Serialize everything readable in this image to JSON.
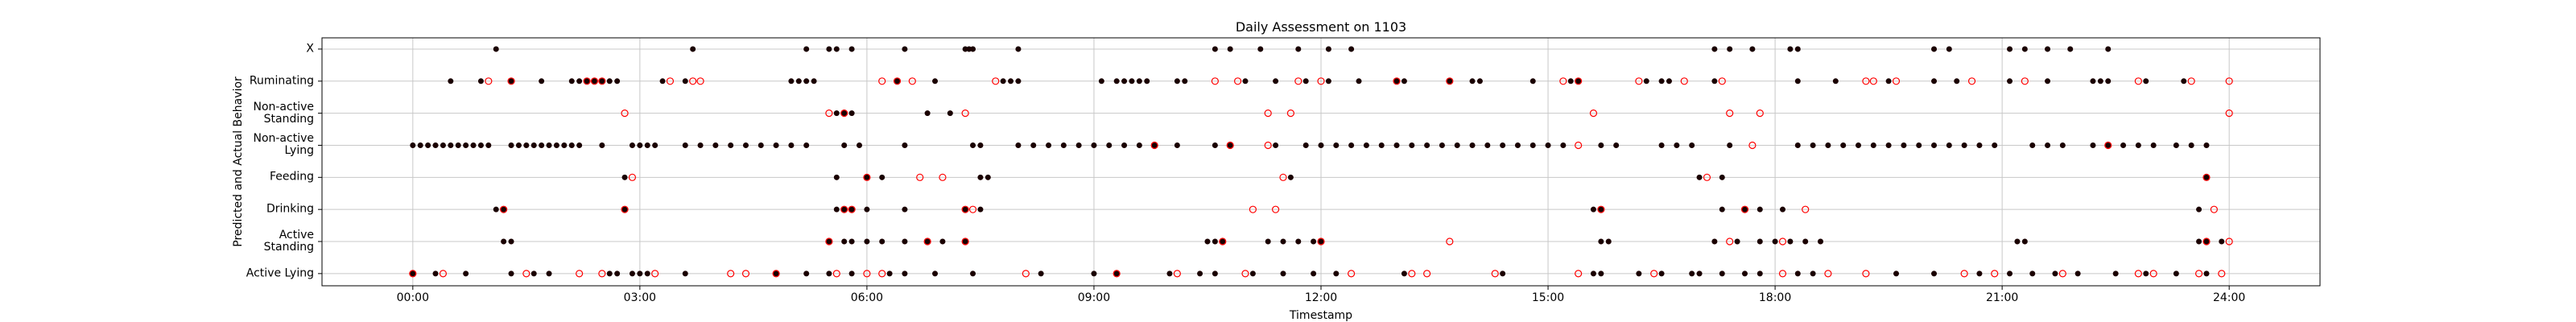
{
  "chart_data": {
    "type": "scatter",
    "title": "Daily Assessment on 1103",
    "xlabel": "Timestamp",
    "ylabel": "Predicted and Actual Behavior",
    "xlim": [
      -1.2,
      25.2
    ],
    "ylim": [
      -0.38,
      7.35
    ],
    "grid": true,
    "xticks": [
      {
        "value": 0,
        "label": "00:00"
      },
      {
        "value": 3,
        "label": "03:00"
      },
      {
        "value": 6,
        "label": "06:00"
      },
      {
        "value": 9,
        "label": "09:00"
      },
      {
        "value": 12,
        "label": "12:00"
      },
      {
        "value": 15,
        "label": "15:00"
      },
      {
        "value": 18,
        "label": "18:00"
      },
      {
        "value": 21,
        "label": "21:00"
      },
      {
        "value": 24,
        "label": "24:00"
      }
    ],
    "yticks": [
      {
        "value": 0,
        "label": "Active Lying"
      },
      {
        "value": 1,
        "label": "Active Standing"
      },
      {
        "value": 2,
        "label": "Drinking"
      },
      {
        "value": 3,
        "label": "Feeding"
      },
      {
        "value": 4,
        "label": "Non-active Lying"
      },
      {
        "value": 5,
        "label": "Non-active Standing"
      },
      {
        "value": 6,
        "label": "Ruminating"
      },
      {
        "value": 7,
        "label": "X"
      }
    ],
    "series": [
      {
        "color": "#1a0000",
        "marker": "filled",
        "x": [
          0.0,
          0.1,
          0.2,
          0.3,
          0.4,
          0.5,
          0.6,
          0.7,
          0.8,
          0.9,
          1.0,
          1.3,
          1.4,
          1.5,
          1.6,
          1.7,
          1.8,
          1.9,
          2.0,
          2.1,
          2.2,
          2.5,
          2.9,
          3.0,
          3.1,
          3.2,
          3.6,
          3.8,
          4.0,
          4.2,
          4.4,
          4.6,
          4.8,
          5.0,
          5.2,
          5.7,
          5.9,
          6.5,
          7.4,
          7.5,
          8.0,
          8.2,
          8.4,
          8.6,
          8.8,
          9.0,
          9.2,
          9.4,
          9.6,
          9.8,
          10.1,
          10.6,
          10.8,
          11.4,
          11.8,
          12.0,
          12.2,
          12.4,
          12.6,
          12.8,
          13.0,
          13.2,
          13.4,
          13.6,
          13.8,
          14.0,
          14.2,
          14.4,
          14.6,
          14.8,
          15.0,
          15.2,
          15.7,
          15.9,
          16.5,
          16.7,
          16.9,
          17.4,
          18.3,
          18.5,
          18.7,
          18.9,
          19.1,
          19.3,
          19.5,
          19.7,
          19.9,
          20.1,
          20.3,
          20.5,
          20.7,
          20.9,
          21.4,
          21.6,
          21.8,
          22.2,
          22.4,
          22.6,
          22.8,
          23.0,
          23.3,
          23.5,
          23.7
        ],
        "values": [
          4,
          4,
          4,
          4,
          4,
          4,
          4,
          4,
          4,
          4,
          4,
          4,
          4,
          4,
          4,
          4,
          4,
          4,
          4,
          4,
          4,
          4,
          4,
          4,
          4,
          4,
          4,
          4,
          4,
          4,
          4,
          4,
          4,
          4,
          4,
          4,
          4,
          4,
          4,
          4,
          4,
          4,
          4,
          4,
          4,
          4,
          4,
          4,
          4,
          4,
          4,
          4,
          4,
          4,
          4,
          4,
          4,
          4,
          4,
          4,
          4,
          4,
          4,
          4,
          4,
          4,
          4,
          4,
          4,
          4,
          4,
          4,
          4,
          4,
          4,
          4,
          4,
          4,
          4,
          4,
          4,
          4,
          4,
          4,
          4,
          4,
          4,
          4,
          4,
          4,
          4,
          4,
          4,
          4,
          4,
          4,
          4,
          4,
          4,
          4,
          4,
          4,
          4
        ]
      },
      {
        "color": "#1a0000",
        "marker": "filled",
        "x": [
          0.5,
          0.9,
          1.3,
          1.7,
          2.1,
          2.2,
          2.3,
          2.4,
          2.5,
          2.6,
          2.7,
          3.3,
          3.6,
          5.0,
          5.1,
          5.2,
          5.3,
          6.4,
          6.9,
          7.8,
          7.9,
          8.0,
          9.1,
          9.3,
          9.4,
          9.5,
          9.6,
          9.7,
          10.1,
          10.2,
          11.0,
          11.4,
          11.8,
          12.1,
          12.5,
          13.0,
          13.1,
          13.7,
          14.0,
          14.1,
          14.8,
          15.3,
          15.4,
          16.3,
          16.5,
          16.6,
          17.2,
          18.3,
          18.8,
          19.5,
          20.1,
          20.4,
          21.1,
          21.6,
          22.2,
          22.3,
          22.4,
          22.9,
          23.4
        ],
        "values": [
          6,
          6,
          6,
          6,
          6,
          6,
          6,
          6,
          6,
          6,
          6,
          6,
          6,
          6,
          6,
          6,
          6,
          6,
          6,
          6,
          6,
          6,
          6,
          6,
          6,
          6,
          6,
          6,
          6,
          6,
          6,
          6,
          6,
          6,
          6,
          6,
          6,
          6,
          6,
          6,
          6,
          6,
          6,
          6,
          6,
          6,
          6,
          6,
          6,
          6,
          6,
          6,
          6,
          6,
          6,
          6,
          6,
          6,
          6
        ]
      },
      {
        "color": "#1a0000",
        "marker": "filled",
        "x": [
          1.1,
          3.7,
          5.2,
          5.5,
          5.6,
          5.8,
          6.5,
          7.3,
          7.35,
          7.4,
          8.0,
          10.6,
          10.8,
          11.2,
          11.7,
          12.1,
          12.4,
          17.2,
          17.4,
          17.7,
          18.2,
          18.3,
          20.1,
          20.3,
          21.1,
          21.3,
          21.6,
          21.9,
          22.4
        ],
        "values": [
          7,
          7,
          7,
          7,
          7,
          7,
          7,
          7,
          7,
          7,
          7,
          7,
          7,
          7,
          7,
          7,
          7,
          7,
          7,
          7,
          7,
          7,
          7,
          7,
          7,
          7,
          7,
          7,
          7
        ]
      },
      {
        "color": "#1a0000",
        "marker": "filled",
        "x": [
          5.6,
          5.7,
          5.8,
          6.8,
          7.1
        ],
        "values": [
          5,
          5,
          5,
          5,
          5
        ]
      },
      {
        "color": "#1a0000",
        "marker": "filled",
        "x": [
          2.8,
          5.6,
          6.0,
          6.2,
          7.5,
          7.6,
          11.6,
          17.0,
          17.3,
          23.7
        ],
        "values": [
          3,
          3,
          3,
          3,
          3,
          3,
          3,
          3,
          3,
          3
        ]
      },
      {
        "color": "#1a0000",
        "marker": "filled",
        "x": [
          1.1,
          1.2,
          2.8,
          5.6,
          5.7,
          5.8,
          6.0,
          6.5,
          7.3,
          7.5,
          15.6,
          15.7,
          17.3,
          17.6,
          17.8,
          18.1,
          23.6
        ],
        "values": [
          2,
          2,
          2,
          2,
          2,
          2,
          2,
          2,
          2,
          2,
          2,
          2,
          2,
          2,
          2,
          2,
          2
        ]
      },
      {
        "color": "#1a0000",
        "marker": "filled",
        "x": [
          1.2,
          1.3,
          5.5,
          5.7,
          5.8,
          6.0,
          6.2,
          6.5,
          6.8,
          7.0,
          7.3,
          10.5,
          10.6,
          10.7,
          11.3,
          11.5,
          11.7,
          11.9,
          12.0,
          15.7,
          15.8,
          17.2,
          17.5,
          17.8,
          18.0,
          18.2,
          18.4,
          18.6,
          21.2,
          21.3,
          23.6,
          23.7,
          23.9
        ],
        "values": [
          1,
          1,
          1,
          1,
          1,
          1,
          1,
          1,
          1,
          1,
          1,
          1,
          1,
          1,
          1,
          1,
          1,
          1,
          1,
          1,
          1,
          1,
          1,
          1,
          1,
          1,
          1,
          1,
          1,
          1,
          1,
          1,
          1
        ]
      },
      {
        "color": "#1a0000",
        "marker": "filled",
        "x": [
          0.0,
          0.3,
          0.7,
          1.3,
          1.6,
          1.8,
          2.6,
          2.7,
          2.9,
          3.0,
          3.1,
          3.6,
          4.8,
          5.2,
          5.5,
          5.8,
          6.3,
          6.5,
          6.9,
          7.4,
          8.3,
          9.0,
          9.3,
          10.0,
          10.4,
          10.6,
          11.1,
          11.5,
          11.9,
          12.2,
          13.1,
          14.4,
          15.6,
          15.7,
          16.2,
          16.5,
          16.9,
          17.0,
          17.3,
          17.6,
          17.8,
          18.3,
          18.5,
          19.6,
          20.1,
          20.7,
          21.1,
          21.4,
          21.7,
          22.0,
          22.5,
          22.9,
          23.3,
          23.7
        ],
        "values": [
          0,
          0,
          0,
          0,
          0,
          0,
          0,
          0,
          0,
          0,
          0,
          0,
          0,
          0,
          0,
          0,
          0,
          0,
          0,
          0,
          0,
          0,
          0,
          0,
          0,
          0,
          0,
          0,
          0,
          0,
          0,
          0,
          0,
          0,
          0,
          0,
          0,
          0,
          0,
          0,
          0,
          0,
          0,
          0,
          0,
          0,
          0,
          0,
          0,
          0,
          0,
          0,
          0,
          0
        ]
      },
      {
        "color": "#ff0000",
        "marker": "open",
        "x": [
          1.0,
          1.3,
          2.3,
          2.4,
          2.5,
          3.4,
          3.7,
          3.8,
          6.2,
          6.4,
          6.6,
          7.7,
          10.6,
          10.9,
          11.7,
          12.0,
          13.0,
          13.7,
          15.2,
          15.4,
          16.2,
          16.8,
          17.3,
          19.2,
          19.3,
          19.6,
          20.6,
          21.3,
          22.8,
          23.5,
          24.0
        ],
        "values": [
          6,
          6,
          6,
          6,
          6,
          6,
          6,
          6,
          6,
          6,
          6,
          6,
          6,
          6,
          6,
          6,
          6,
          6,
          6,
          6,
          6,
          6,
          6,
          6,
          6,
          6,
          6,
          6,
          6,
          6,
          6
        ]
      },
      {
        "color": "#ff0000",
        "marker": "open",
        "x": [
          2.8,
          5.5,
          5.7,
          7.3,
          11.3,
          11.6,
          15.6,
          17.4,
          17.8,
          24.0
        ],
        "values": [
          5,
          5,
          5,
          5,
          5,
          5,
          5,
          5,
          5,
          5
        ]
      },
      {
        "color": "#ff0000",
        "marker": "open",
        "x": [
          9.8,
          10.8,
          11.3,
          15.4,
          17.7,
          22.4
        ],
        "values": [
          4,
          4,
          4,
          4,
          4,
          4
        ]
      },
      {
        "color": "#ff0000",
        "marker": "open",
        "x": [
          2.9,
          6.0,
          6.7,
          7.0,
          11.5,
          17.1,
          23.7
        ],
        "values": [
          3,
          3,
          3,
          3,
          3,
          3,
          3
        ]
      },
      {
        "color": "#ff0000",
        "marker": "open",
        "x": [
          1.2,
          2.8,
          5.7,
          5.8,
          7.3,
          7.4,
          11.1,
          11.4,
          15.7,
          17.6,
          18.4,
          23.8
        ],
        "values": [
          2,
          2,
          2,
          2,
          2,
          2,
          2,
          2,
          2,
          2,
          2,
          2
        ]
      },
      {
        "color": "#ff0000",
        "marker": "open",
        "x": [
          5.5,
          6.8,
          7.3,
          10.7,
          12.0,
          13.7,
          17.4,
          18.1,
          23.7,
          24.0
        ],
        "values": [
          1,
          1,
          1,
          1,
          1,
          1,
          1,
          1,
          1,
          1
        ]
      },
      {
        "color": "#ff0000",
        "marker": "open",
        "x": [
          0.0,
          0.4,
          1.5,
          2.2,
          2.5,
          3.2,
          4.2,
          4.4,
          4.8,
          5.6,
          6.0,
          6.2,
          8.1,
          9.3,
          10.1,
          11.0,
          12.4,
          13.2,
          13.4,
          14.3,
          15.4,
          16.4,
          18.1,
          18.7,
          19.2,
          20.5,
          20.9,
          21.8,
          22.8,
          23.0,
          23.6,
          23.9
        ],
        "values": [
          0,
          0,
          0,
          0,
          0,
          0,
          0,
          0,
          0,
          0,
          0,
          0,
          0,
          0,
          0,
          0,
          0,
          0,
          0,
          0,
          0,
          0,
          0,
          0,
          0,
          0,
          0,
          0,
          0,
          0,
          0,
          0
        ]
      }
    ]
  }
}
